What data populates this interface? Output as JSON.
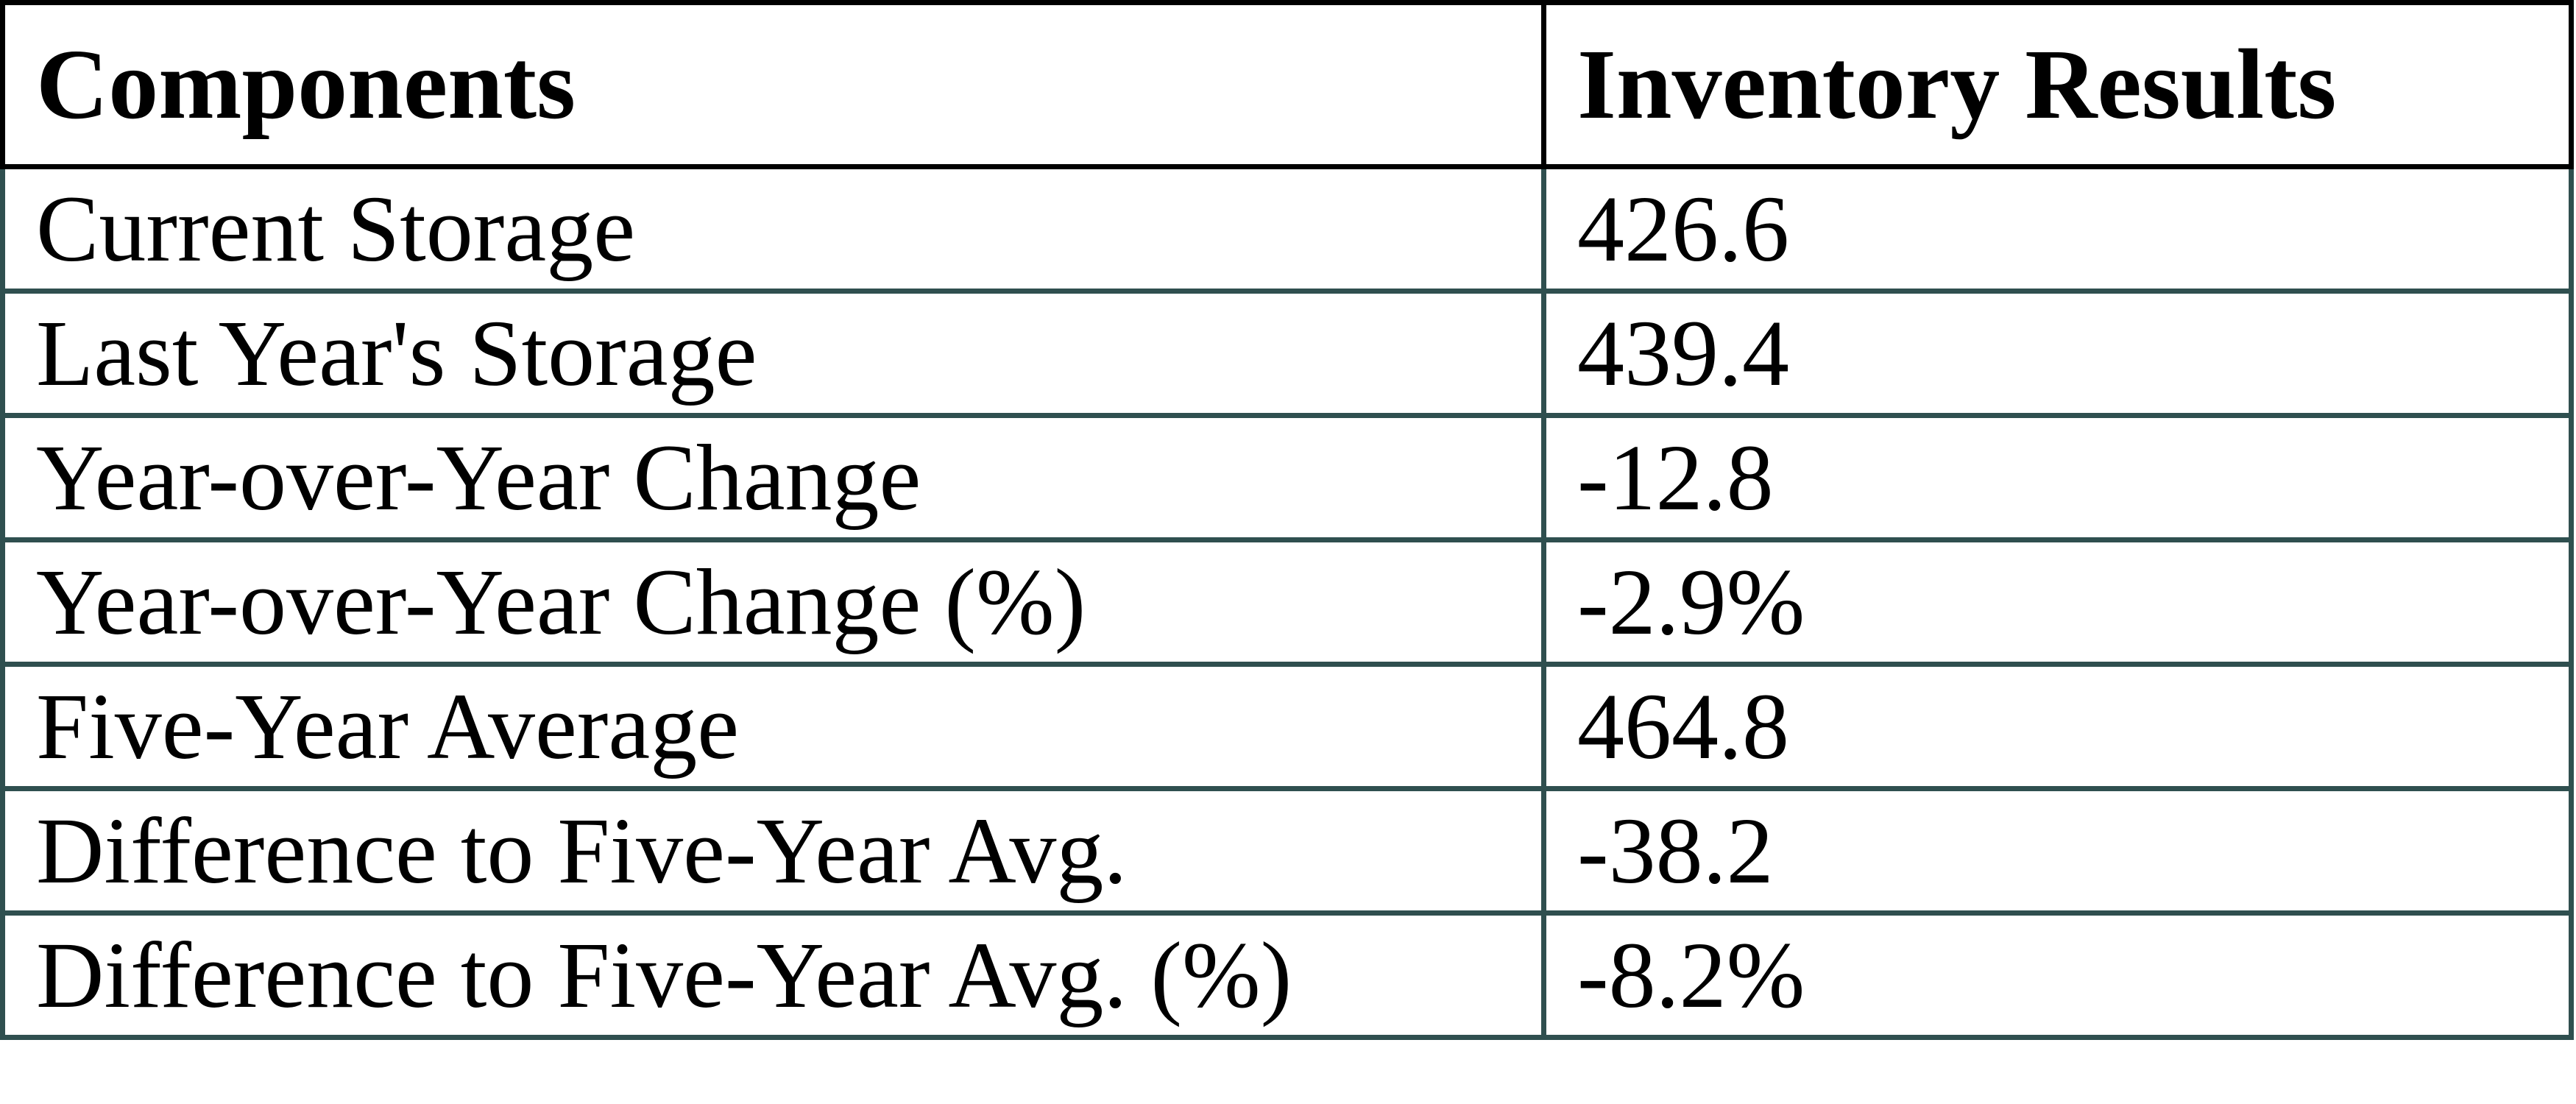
{
  "table": {
    "columns": [
      "Components",
      "Inventory Results"
    ],
    "rows": [
      {
        "label": "Current Storage",
        "value": "426.6"
      },
      {
        "label": "Last Year's Storage",
        "value": "439.4"
      },
      {
        "label": "Year-over-Year Change",
        "value": "-12.8"
      },
      {
        "label": "Year-over-Year Change (%)",
        "value": "-2.9%"
      },
      {
        "label": "Five-Year Average",
        "value": "464.8"
      },
      {
        "label": "Difference to Five-Year Avg.",
        "value": "-38.2"
      },
      {
        "label": "Difference to Five-Year Avg. (%)",
        "value": "-8.2%"
      }
    ],
    "colors": {
      "header_border": "#000000",
      "body_border": "#2F4F4F",
      "text": "#000000",
      "background": "#FFFFFF"
    }
  },
  "chart_data": {
    "type": "table",
    "title": "",
    "columns": [
      "Components",
      "Inventory Results"
    ],
    "categories": [
      "Current Storage",
      "Last Year's Storage",
      "Year-over-Year Change",
      "Year-over-Year Change (%)",
      "Five-Year Average",
      "Difference to Five-Year Avg.",
      "Difference to Five-Year Avg. (%)"
    ],
    "values": [
      426.6,
      439.4,
      -12.8,
      -2.9,
      464.8,
      -38.2,
      -8.2
    ],
    "value_labels": [
      "426.6",
      "439.4",
      "-12.8",
      "-2.9%",
      "464.8",
      "-38.2",
      "-8.2%"
    ],
    "units": [
      "",
      "",
      "",
      "%",
      "",
      "",
      "%"
    ],
    "layout_hints": {
      "grid": "full-borders",
      "header_row": true,
      "header_bold": true
    }
  }
}
